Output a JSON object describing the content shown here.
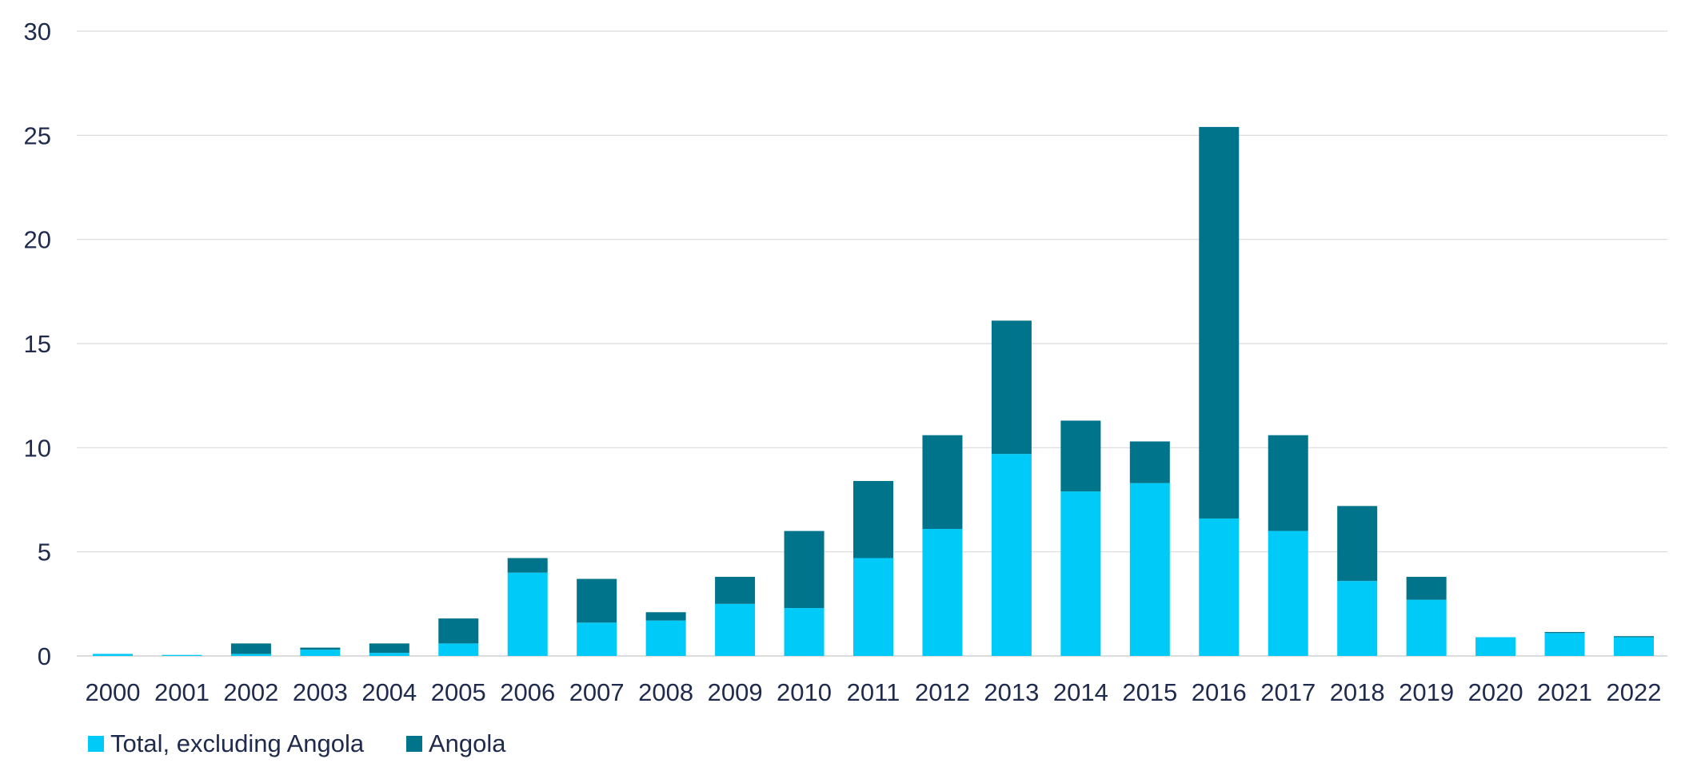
{
  "chart_data": {
    "type": "bar",
    "stacked": true,
    "categories": [
      "2000",
      "2001",
      "2002",
      "2003",
      "2004",
      "2005",
      "2006",
      "2007",
      "2008",
      "2009",
      "2010",
      "2011",
      "2012",
      "2013",
      "2014",
      "2015",
      "2016",
      "2017",
      "2018",
      "2019",
      "2020",
      "2021",
      "2022"
    ],
    "series": [
      {
        "name": "Total, excluding Angola",
        "color": "#00cbf8",
        "values": [
          0.1,
          0.05,
          0.1,
          0.3,
          0.15,
          0.6,
          4.0,
          1.6,
          1.7,
          2.5,
          2.3,
          4.7,
          6.1,
          9.7,
          7.9,
          8.3,
          6.6,
          6.0,
          3.6,
          2.7,
          0.9,
          1.1,
          0.9
        ]
      },
      {
        "name": "Angola",
        "color": "#00748b",
        "values": [
          0.0,
          0.0,
          0.5,
          0.1,
          0.45,
          1.2,
          0.7,
          2.1,
          0.4,
          1.3,
          3.7,
          3.7,
          4.5,
          6.4,
          3.4,
          2.0,
          18.8,
          4.6,
          3.6,
          1.1,
          0.0,
          0.05,
          0.05
        ]
      }
    ],
    "yticks": [
      "0",
      "5",
      "10",
      "15",
      "20",
      "25",
      "30"
    ],
    "ylim": [
      0,
      30
    ],
    "grid": true,
    "legend_position": "bottom-left",
    "title": "",
    "xlabel": "",
    "ylabel": "",
    "gridline_color": "#d9d9d9",
    "text_color": "#1f2b4d"
  }
}
